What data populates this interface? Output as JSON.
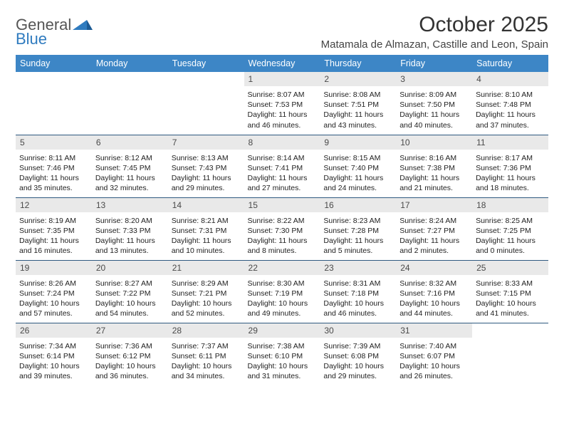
{
  "logo": {
    "word1": "General",
    "word2": "Blue"
  },
  "title": "October 2025",
  "subtitle": "Matamala de Almazan, Castille and Leon, Spain",
  "colors": {
    "header_bg": "#3d86c6",
    "header_text": "#ffffff",
    "daynum_bg": "#e9e9e9",
    "daynum_text": "#4a4a4a",
    "row_border": "#2f5a80",
    "logo_accent": "#2f7bbf",
    "page_bg": "#ffffff"
  },
  "weekdays": [
    "Sunday",
    "Monday",
    "Tuesday",
    "Wednesday",
    "Thursday",
    "Friday",
    "Saturday"
  ],
  "weeks": [
    [
      null,
      null,
      null,
      {
        "n": "1",
        "sr": "Sunrise: 8:07 AM",
        "ss": "Sunset: 7:53 PM",
        "d1": "Daylight: 11 hours",
        "d2": "and 46 minutes."
      },
      {
        "n": "2",
        "sr": "Sunrise: 8:08 AM",
        "ss": "Sunset: 7:51 PM",
        "d1": "Daylight: 11 hours",
        "d2": "and 43 minutes."
      },
      {
        "n": "3",
        "sr": "Sunrise: 8:09 AM",
        "ss": "Sunset: 7:50 PM",
        "d1": "Daylight: 11 hours",
        "d2": "and 40 minutes."
      },
      {
        "n": "4",
        "sr": "Sunrise: 8:10 AM",
        "ss": "Sunset: 7:48 PM",
        "d1": "Daylight: 11 hours",
        "d2": "and 37 minutes."
      }
    ],
    [
      {
        "n": "5",
        "sr": "Sunrise: 8:11 AM",
        "ss": "Sunset: 7:46 PM",
        "d1": "Daylight: 11 hours",
        "d2": "and 35 minutes."
      },
      {
        "n": "6",
        "sr": "Sunrise: 8:12 AM",
        "ss": "Sunset: 7:45 PM",
        "d1": "Daylight: 11 hours",
        "d2": "and 32 minutes."
      },
      {
        "n": "7",
        "sr": "Sunrise: 8:13 AM",
        "ss": "Sunset: 7:43 PM",
        "d1": "Daylight: 11 hours",
        "d2": "and 29 minutes."
      },
      {
        "n": "8",
        "sr": "Sunrise: 8:14 AM",
        "ss": "Sunset: 7:41 PM",
        "d1": "Daylight: 11 hours",
        "d2": "and 27 minutes."
      },
      {
        "n": "9",
        "sr": "Sunrise: 8:15 AM",
        "ss": "Sunset: 7:40 PM",
        "d1": "Daylight: 11 hours",
        "d2": "and 24 minutes."
      },
      {
        "n": "10",
        "sr": "Sunrise: 8:16 AM",
        "ss": "Sunset: 7:38 PM",
        "d1": "Daylight: 11 hours",
        "d2": "and 21 minutes."
      },
      {
        "n": "11",
        "sr": "Sunrise: 8:17 AM",
        "ss": "Sunset: 7:36 PM",
        "d1": "Daylight: 11 hours",
        "d2": "and 18 minutes."
      }
    ],
    [
      {
        "n": "12",
        "sr": "Sunrise: 8:19 AM",
        "ss": "Sunset: 7:35 PM",
        "d1": "Daylight: 11 hours",
        "d2": "and 16 minutes."
      },
      {
        "n": "13",
        "sr": "Sunrise: 8:20 AM",
        "ss": "Sunset: 7:33 PM",
        "d1": "Daylight: 11 hours",
        "d2": "and 13 minutes."
      },
      {
        "n": "14",
        "sr": "Sunrise: 8:21 AM",
        "ss": "Sunset: 7:31 PM",
        "d1": "Daylight: 11 hours",
        "d2": "and 10 minutes."
      },
      {
        "n": "15",
        "sr": "Sunrise: 8:22 AM",
        "ss": "Sunset: 7:30 PM",
        "d1": "Daylight: 11 hours",
        "d2": "and 8 minutes."
      },
      {
        "n": "16",
        "sr": "Sunrise: 8:23 AM",
        "ss": "Sunset: 7:28 PM",
        "d1": "Daylight: 11 hours",
        "d2": "and 5 minutes."
      },
      {
        "n": "17",
        "sr": "Sunrise: 8:24 AM",
        "ss": "Sunset: 7:27 PM",
        "d1": "Daylight: 11 hours",
        "d2": "and 2 minutes."
      },
      {
        "n": "18",
        "sr": "Sunrise: 8:25 AM",
        "ss": "Sunset: 7:25 PM",
        "d1": "Daylight: 11 hours",
        "d2": "and 0 minutes."
      }
    ],
    [
      {
        "n": "19",
        "sr": "Sunrise: 8:26 AM",
        "ss": "Sunset: 7:24 PM",
        "d1": "Daylight: 10 hours",
        "d2": "and 57 minutes."
      },
      {
        "n": "20",
        "sr": "Sunrise: 8:27 AM",
        "ss": "Sunset: 7:22 PM",
        "d1": "Daylight: 10 hours",
        "d2": "and 54 minutes."
      },
      {
        "n": "21",
        "sr": "Sunrise: 8:29 AM",
        "ss": "Sunset: 7:21 PM",
        "d1": "Daylight: 10 hours",
        "d2": "and 52 minutes."
      },
      {
        "n": "22",
        "sr": "Sunrise: 8:30 AM",
        "ss": "Sunset: 7:19 PM",
        "d1": "Daylight: 10 hours",
        "d2": "and 49 minutes."
      },
      {
        "n": "23",
        "sr": "Sunrise: 8:31 AM",
        "ss": "Sunset: 7:18 PM",
        "d1": "Daylight: 10 hours",
        "d2": "and 46 minutes."
      },
      {
        "n": "24",
        "sr": "Sunrise: 8:32 AM",
        "ss": "Sunset: 7:16 PM",
        "d1": "Daylight: 10 hours",
        "d2": "and 44 minutes."
      },
      {
        "n": "25",
        "sr": "Sunrise: 8:33 AM",
        "ss": "Sunset: 7:15 PM",
        "d1": "Daylight: 10 hours",
        "d2": "and 41 minutes."
      }
    ],
    [
      {
        "n": "26",
        "sr": "Sunrise: 7:34 AM",
        "ss": "Sunset: 6:14 PM",
        "d1": "Daylight: 10 hours",
        "d2": "and 39 minutes."
      },
      {
        "n": "27",
        "sr": "Sunrise: 7:36 AM",
        "ss": "Sunset: 6:12 PM",
        "d1": "Daylight: 10 hours",
        "d2": "and 36 minutes."
      },
      {
        "n": "28",
        "sr": "Sunrise: 7:37 AM",
        "ss": "Sunset: 6:11 PM",
        "d1": "Daylight: 10 hours",
        "d2": "and 34 minutes."
      },
      {
        "n": "29",
        "sr": "Sunrise: 7:38 AM",
        "ss": "Sunset: 6:10 PM",
        "d1": "Daylight: 10 hours",
        "d2": "and 31 minutes."
      },
      {
        "n": "30",
        "sr": "Sunrise: 7:39 AM",
        "ss": "Sunset: 6:08 PM",
        "d1": "Daylight: 10 hours",
        "d2": "and 29 minutes."
      },
      {
        "n": "31",
        "sr": "Sunrise: 7:40 AM",
        "ss": "Sunset: 6:07 PM",
        "d1": "Daylight: 10 hours",
        "d2": "and 26 minutes."
      },
      null
    ]
  ]
}
